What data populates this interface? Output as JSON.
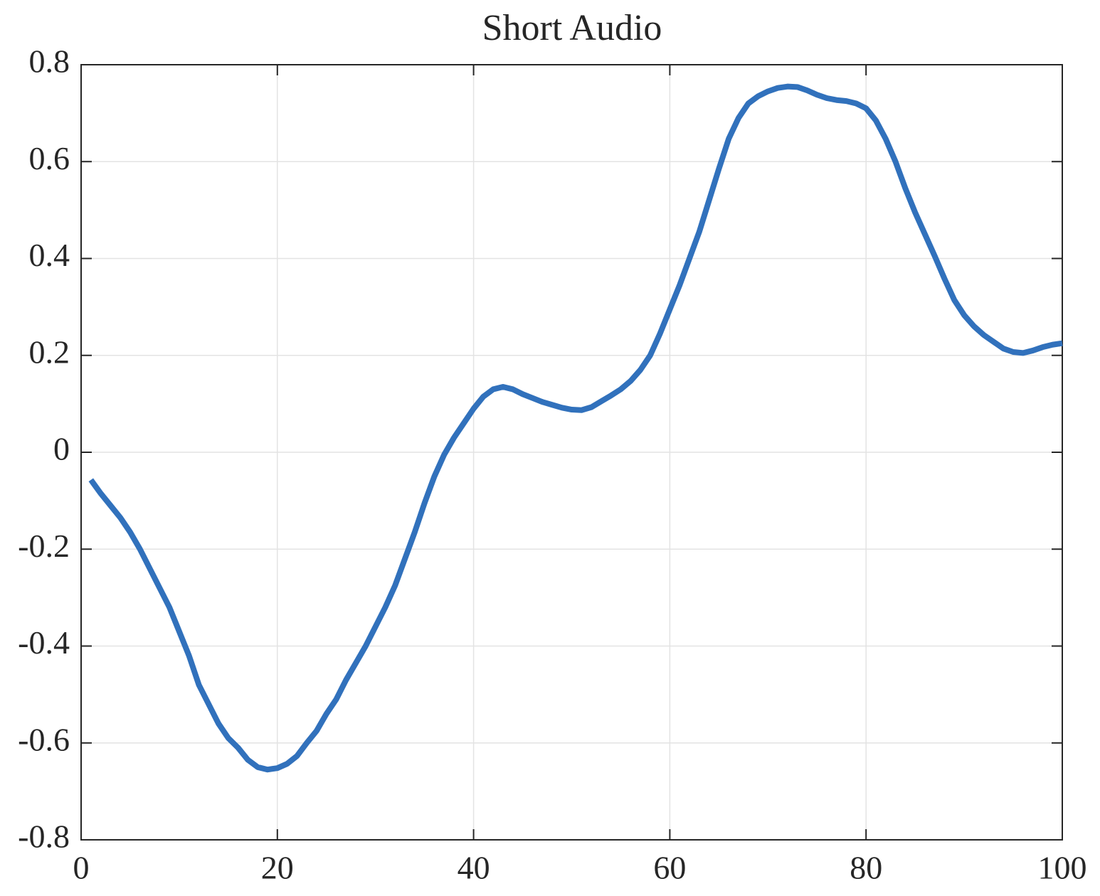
{
  "chart_data": {
    "type": "line",
    "title": "Short Audio",
    "x": [
      1,
      2,
      3,
      4,
      5,
      6,
      7,
      8,
      9,
      10,
      11,
      12,
      13,
      14,
      15,
      16,
      17,
      18,
      19,
      20,
      21,
      22,
      23,
      24,
      25,
      26,
      27,
      28,
      29,
      30,
      31,
      32,
      33,
      34,
      35,
      36,
      37,
      38,
      39,
      40,
      41,
      42,
      43,
      44,
      45,
      46,
      47,
      48,
      49,
      50,
      51,
      52,
      53,
      54,
      55,
      56,
      57,
      58,
      59,
      60,
      61,
      62,
      63,
      64,
      65,
      66,
      67,
      68,
      69,
      70,
      71,
      72,
      73,
      74,
      75,
      76,
      77,
      78,
      79,
      80,
      81,
      82,
      83,
      84,
      85,
      86,
      87,
      88,
      89,
      90,
      91,
      92,
      93,
      94,
      95,
      96,
      97,
      98,
      99,
      100
    ],
    "series": [
      {
        "color": "#3171bc",
        "values": [
          -0.057,
          -0.085,
          -0.11,
          -0.135,
          -0.165,
          -0.2,
          -0.24,
          -0.28,
          -0.32,
          -0.37,
          -0.42,
          -0.48,
          -0.52,
          -0.56,
          -0.59,
          -0.61,
          -0.635,
          -0.65,
          -0.655,
          -0.652,
          -0.643,
          -0.627,
          -0.6,
          -0.575,
          -0.54,
          -0.51,
          -0.47,
          -0.435,
          -0.4,
          -0.36,
          -0.32,
          -0.275,
          -0.22,
          -0.165,
          -0.105,
          -0.05,
          -0.005,
          0.03,
          0.06,
          0.09,
          0.115,
          0.13,
          0.135,
          0.13,
          0.12,
          0.112,
          0.104,
          0.098,
          0.092,
          0.088,
          0.087,
          0.093,
          0.105,
          0.117,
          0.13,
          0.147,
          0.17,
          0.2,
          0.245,
          0.295,
          0.345,
          0.4,
          0.455,
          0.52,
          0.585,
          0.647,
          0.69,
          0.72,
          0.735,
          0.745,
          0.752,
          0.755,
          0.754,
          0.747,
          0.738,
          0.731,
          0.727,
          0.725,
          0.72,
          0.71,
          0.685,
          0.647,
          0.6,
          0.545,
          0.495,
          0.45,
          0.405,
          0.358,
          0.314,
          0.283,
          0.26,
          0.242,
          0.228,
          0.214,
          0.207,
          0.205,
          0.21,
          0.217,
          0.222,
          0.225
        ]
      }
    ],
    "xlim": [
      0,
      100
    ],
    "xticks": [
      0,
      20,
      40,
      60,
      80,
      100
    ],
    "ylim": [
      -0.8,
      0.8
    ],
    "yticks": [
      -0.8,
      -0.6,
      -0.4,
      -0.2,
      0,
      0.2,
      0.4,
      0.6,
      0.8
    ],
    "grid": true
  }
}
